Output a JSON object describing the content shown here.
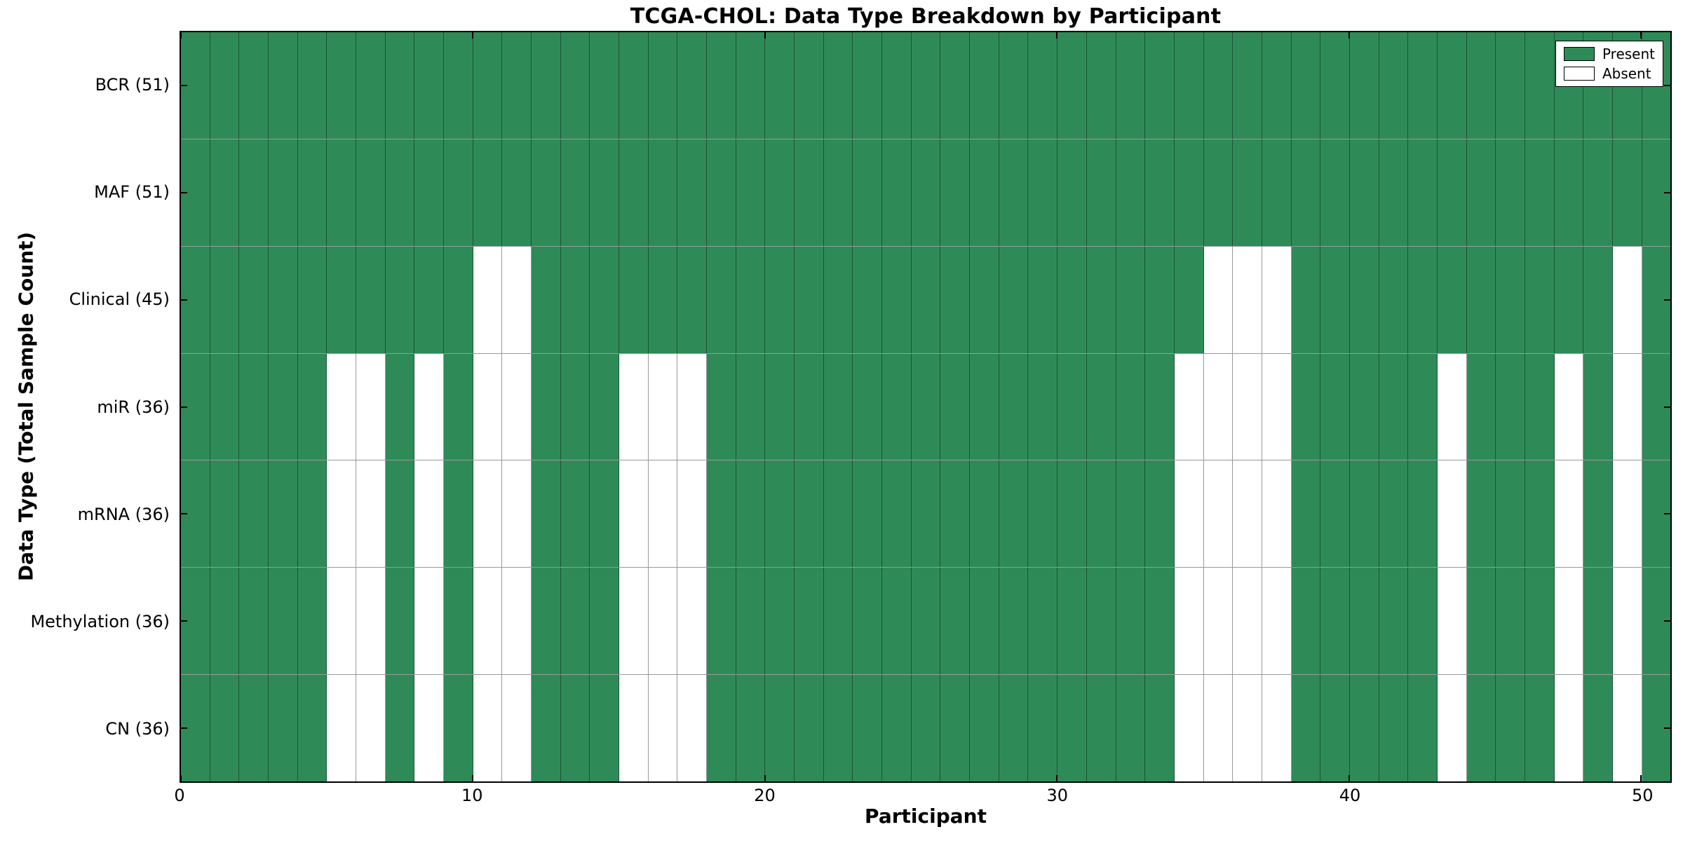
{
  "figure": {
    "title": "TCGA-CHOL: Data Type Breakdown by Participant",
    "xlabel": "Participant",
    "ylabel": "Data Type (Total Sample Count)"
  },
  "legend": {
    "items": [
      {
        "label": "Present",
        "swatch": "present"
      },
      {
        "label": "Absent",
        "swatch": "absent"
      }
    ]
  },
  "colors": {
    "present": "#2e8b57",
    "absent": "#ffffff",
    "grid_line": "rgba(0,0,0,0.4)",
    "axis": "#000000",
    "background": "#ffffff"
  },
  "chart_data": {
    "type": "heatmap",
    "title": "TCGA-CHOL: Data Type Breakdown by Participant",
    "xlabel": "Participant",
    "ylabel": "Data Type (Total Sample Count)",
    "x_ticks": [
      0,
      10,
      20,
      30,
      40,
      50
    ],
    "x_range": [
      0,
      51
    ],
    "n_participants": 51,
    "legend_entries": [
      "Present",
      "Absent"
    ],
    "rows": [
      {
        "label": "BCR (51)",
        "data_type": "BCR",
        "total_samples": 51,
        "absent_participants": []
      },
      {
        "label": "MAF (51)",
        "data_type": "MAF",
        "total_samples": 51,
        "absent_participants": []
      },
      {
        "label": "Clinical (45)",
        "data_type": "Clinical",
        "total_samples": 45,
        "absent_participants": [
          10,
          11,
          35,
          36,
          37,
          49
        ]
      },
      {
        "label": "miR (36)",
        "data_type": "miR",
        "total_samples": 36,
        "absent_participants": [
          5,
          6,
          8,
          10,
          11,
          15,
          16,
          17,
          34,
          35,
          36,
          37,
          43,
          47,
          49
        ]
      },
      {
        "label": "mRNA (36)",
        "data_type": "mRNA",
        "total_samples": 36,
        "absent_participants": [
          5,
          6,
          8,
          10,
          11,
          15,
          16,
          17,
          34,
          35,
          36,
          37,
          43,
          47,
          49
        ]
      },
      {
        "label": "Methylation (36)",
        "data_type": "Methylation",
        "total_samples": 36,
        "absent_participants": [
          5,
          6,
          8,
          10,
          11,
          15,
          16,
          17,
          34,
          35,
          36,
          37,
          43,
          47,
          49
        ]
      },
      {
        "label": "CN (36)",
        "data_type": "CN",
        "total_samples": 36,
        "absent_participants": [
          5,
          6,
          8,
          10,
          11,
          15,
          16,
          17,
          34,
          35,
          36,
          37,
          43,
          47,
          49
        ]
      }
    ]
  }
}
